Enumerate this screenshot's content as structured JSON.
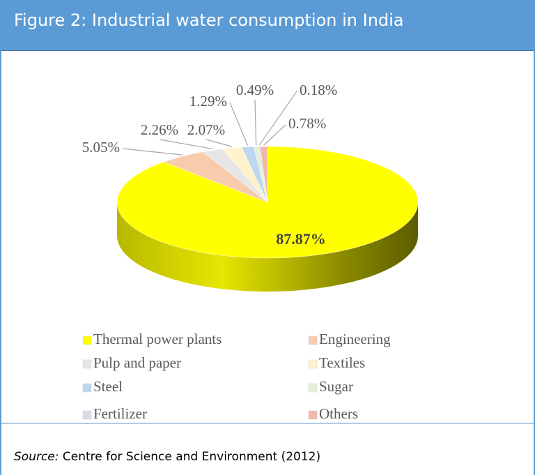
{
  "header": {
    "title": "Figure 2: Industrial water consumption in India"
  },
  "chart_data": {
    "type": "pie",
    "categories": [
      "Thermal power plants",
      "Engineering",
      "Pulp and paper",
      "Textiles",
      "Steel",
      "Sugar",
      "Fertilizer",
      "Others"
    ],
    "values": [
      87.87,
      5.05,
      2.26,
      2.07,
      1.29,
      0.49,
      0.18,
      0.78
    ],
    "value_labels": [
      "87.87%",
      "5.05%",
      "2.26%",
      "2.07%",
      "1.29%",
      "0.49%",
      "0.18%",
      "0.78%"
    ],
    "colors": [
      "#ffff00",
      "#f8cbad",
      "#e7e6e6",
      "#fff2cc",
      "#bdd7ee",
      "#e2f0d9",
      "#d6dce5",
      "#f4b8a8"
    ]
  },
  "source": {
    "label": "Source:",
    "text": "Centre for Science and Environment (2012)"
  }
}
